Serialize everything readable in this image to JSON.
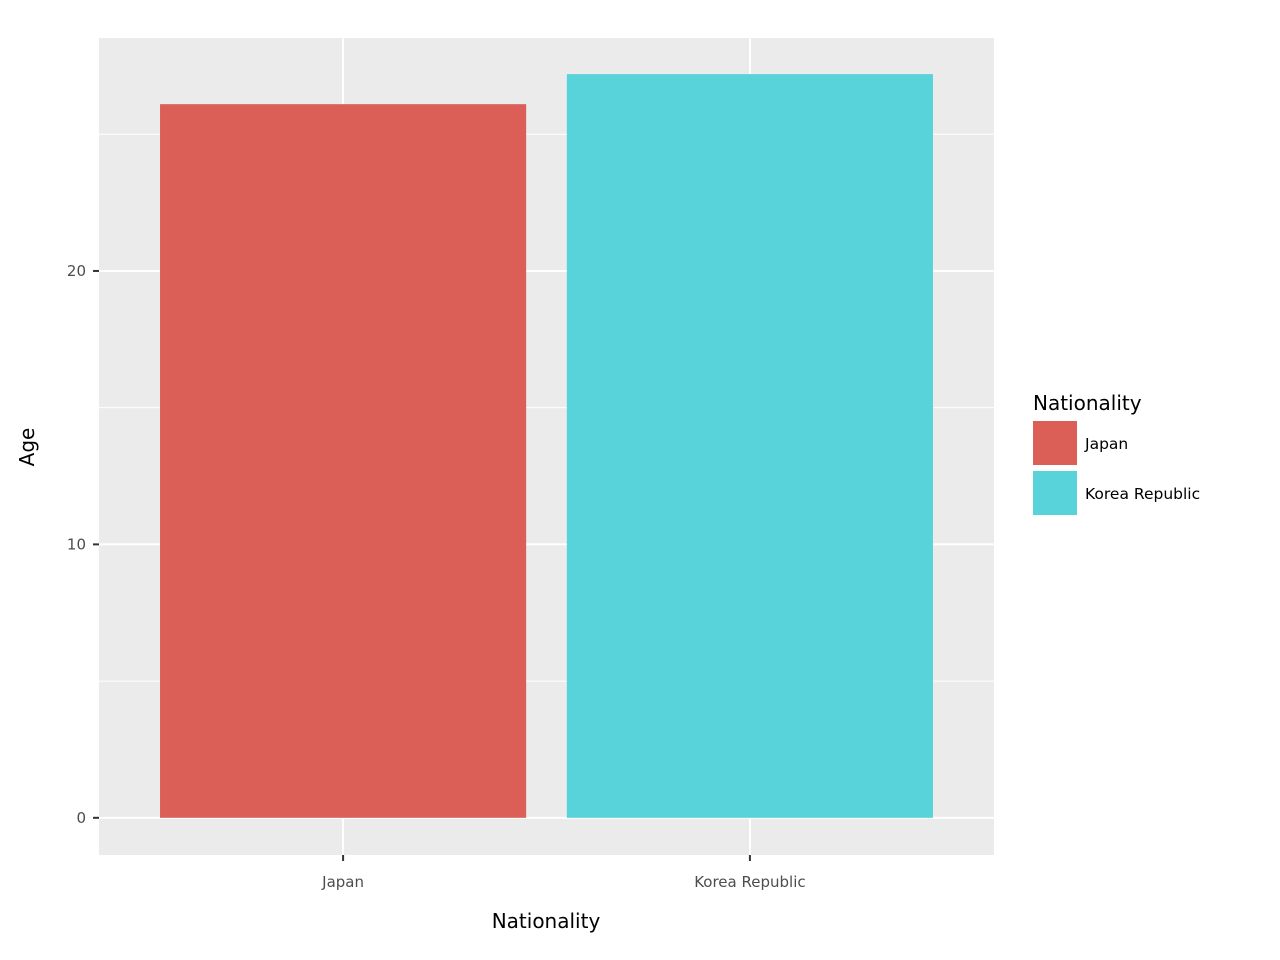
{
  "chart_data": {
    "type": "bar",
    "categories": [
      "Japan",
      "Korea Republic"
    ],
    "values": [
      26.1,
      27.2
    ],
    "colors": [
      "#DC5F57",
      "#58D3DA"
    ],
    "xlabel": "Nationality",
    "ylabel": "Age",
    "ylim": [
      -1.36,
      28.52
    ],
    "yticks": [
      0,
      10,
      20
    ],
    "ytick_labels": [
      "0",
      "10",
      "20"
    ],
    "grid": true,
    "legend": {
      "title": "Nationality",
      "position": "right",
      "entries": [
        "Japan",
        "Korea Republic"
      ]
    },
    "panel_background": "#EBEBEB"
  }
}
